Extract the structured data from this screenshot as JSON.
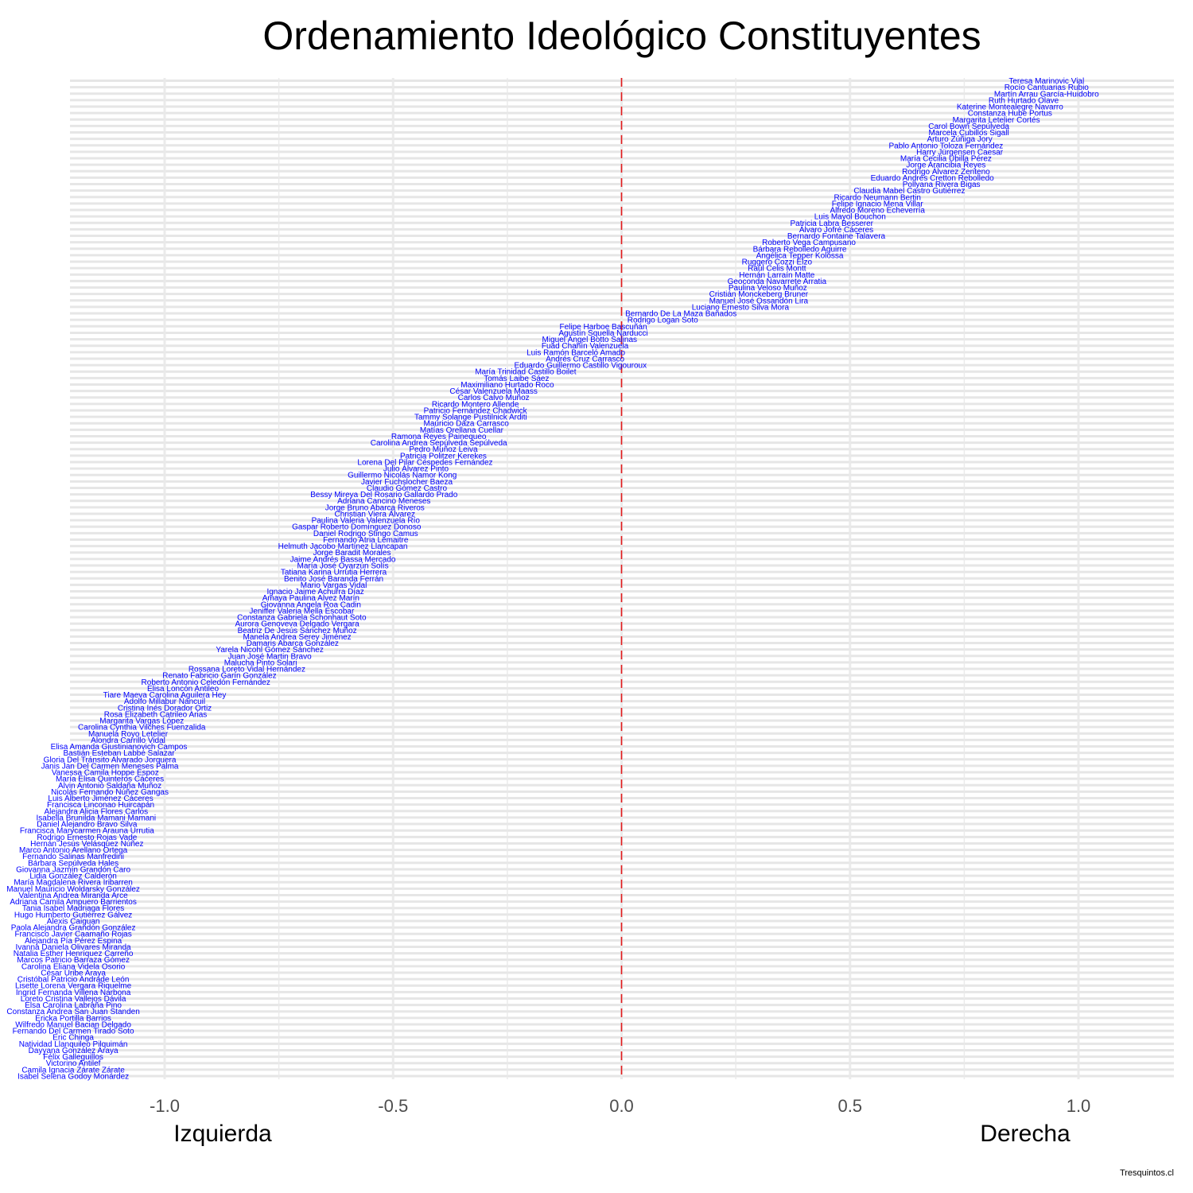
{
  "chart_data": {
    "type": "scatter",
    "title": "Ordenamiento Ideológico Constituyentes",
    "xlabel": "",
    "ylabel": "",
    "x_range": [
      -1.2,
      1.2
    ],
    "x_ticks": [
      "-1.0",
      "-0.5",
      "0.0",
      "0.5",
      "1.0"
    ],
    "x_tick_values": [
      -1.0,
      -0.5,
      0.0,
      0.5,
      1.0
    ],
    "left_label": "Izquierda",
    "right_label": "Derecha",
    "caption": "Tresquintos.cl",
    "reference_line": 0.0,
    "grid": "on",
    "colors": {
      "label": "#0000ff",
      "reference": "#e31a1c",
      "grid": "#e6e6e6",
      "title": "#000000",
      "tick": "#4d4d4d"
    },
    "points": [
      {
        "name": "Teresa Marinovic Vial",
        "x": 0.93
      },
      {
        "name": "Rocío Cantuarias Rubio",
        "x": 0.93
      },
      {
        "name": "Martín Arrau García-Huidobro",
        "x": 0.93
      },
      {
        "name": "Ruth Hurtado Olave",
        "x": 0.88
      },
      {
        "name": "Katerine Montealegre Navarro",
        "x": 0.85
      },
      {
        "name": "Constanza Hube Portus",
        "x": 0.85
      },
      {
        "name": "Margarita Letelier Cortés",
        "x": 0.82
      },
      {
        "name": "Carol Bown Sepúlveda",
        "x": 0.76
      },
      {
        "name": "Marcela Cubillos Sigall",
        "x": 0.76
      },
      {
        "name": "Arturo Zúñiga Jory",
        "x": 0.74
      },
      {
        "name": "Pablo Antonio Toloza Fernández",
        "x": 0.71
      },
      {
        "name": "Harry Jürgensen Caesar",
        "x": 0.74
      },
      {
        "name": "María Cecilia Ubilla Pérez",
        "x": 0.71
      },
      {
        "name": "Jorge Arancibia Reyes",
        "x": 0.71
      },
      {
        "name": "Rodrigo Álvarez Zenteno",
        "x": 0.71
      },
      {
        "name": "Eduardo Andrés Cretton Rebolledo",
        "x": 0.68
      },
      {
        "name": "Pollyana Rivera Bigas",
        "x": 0.7
      },
      {
        "name": "Claudia Mabel Castro Gutiérrez",
        "x": 0.63
      },
      {
        "name": "Ricardo Neumann Bertin",
        "x": 0.56
      },
      {
        "name": "Felipe Ignacio Mena Villar",
        "x": 0.56
      },
      {
        "name": "Alfredo Moreno Echeverría",
        "x": 0.56
      },
      {
        "name": "Luis Mayol Bouchon",
        "x": 0.5
      },
      {
        "name": "Patricia Labra Besserer",
        "x": 0.46
      },
      {
        "name": "Álvaro Jofré Cáceres",
        "x": 0.47
      },
      {
        "name": "Bernardo Fontaine Talavera",
        "x": 0.47
      },
      {
        "name": "Roberto Vega Campusano",
        "x": 0.41
      },
      {
        "name": "Bárbara Rebolledo Aguirre",
        "x": 0.39
      },
      {
        "name": "Angélica Tepper Kolossa",
        "x": 0.39
      },
      {
        "name": "Ruggero Cozzi Elzo",
        "x": 0.34
      },
      {
        "name": "Raúl Celis Montt",
        "x": 0.34
      },
      {
        "name": "Hernán Larraín Matte",
        "x": 0.34
      },
      {
        "name": "Geoconda Navarrete Arratia",
        "x": 0.34
      },
      {
        "name": "Paulina Veloso Muñoz",
        "x": 0.32
      },
      {
        "name": "Cristián Monckeberg Bruner",
        "x": 0.3
      },
      {
        "name": "Manuel José Ossandón Lira",
        "x": 0.3
      },
      {
        "name": "Luciano Ernesto Silva Mora",
        "x": 0.26
      },
      {
        "name": "Bernardo De La Maza Bañados",
        "x": 0.13
      },
      {
        "name": "Rodrigo Logan Soto",
        "x": 0.09
      },
      {
        "name": "Felipe Harboe Bascuñán",
        "x": -0.04
      },
      {
        "name": "Agustín Squella Narducci",
        "x": -0.04
      },
      {
        "name": "Miguel Ángel Botto Salinas",
        "x": -0.07
      },
      {
        "name": "Fuad Chahín Valenzuela",
        "x": -0.08
      },
      {
        "name": "Luis Ramón Barceló Amado",
        "x": -0.1
      },
      {
        "name": "Andrés Cruz Carrasco",
        "x": -0.08
      },
      {
        "name": "Eduardo Guillermo Castillo Vigouroux",
        "x": -0.09
      },
      {
        "name": "María Trinidad Castillo Boilet",
        "x": -0.21
      },
      {
        "name": "Tomás Laibe Sáez",
        "x": -0.23
      },
      {
        "name": "Maximiliano Hurtado Roco",
        "x": -0.25
      },
      {
        "name": "César Valenzuela Maass",
        "x": -0.28
      },
      {
        "name": "Carlos Calvo Muñoz",
        "x": -0.28
      },
      {
        "name": "Ricardo Montero Allende",
        "x": -0.32
      },
      {
        "name": "Patricio Fernández Chadwick",
        "x": -0.32
      },
      {
        "name": "Tammy Solange Pustilnick Arditi",
        "x": -0.33
      },
      {
        "name": "Mauricio Daza Carrasco",
        "x": -0.34
      },
      {
        "name": "Matías Orellana Cuellar",
        "x": -0.35
      },
      {
        "name": "Ramona Reyes Painequeo",
        "x": -0.4
      },
      {
        "name": "Carolina Andrea Sepúlveda Sepúlveda",
        "x": -0.4
      },
      {
        "name": "Pedro Muñoz Leiva",
        "x": -0.39
      },
      {
        "name": "Patricia Politzer Kerekes",
        "x": -0.39
      },
      {
        "name": "Lorena Del Pilar Céspedes Fernández",
        "x": -0.43
      },
      {
        "name": "Julio Álvarez Pinto",
        "x": -0.45
      },
      {
        "name": "Guillermo Nicolás Namor Kong",
        "x": -0.48
      },
      {
        "name": "Javier Fuchslocher Baeza",
        "x": -0.47
      },
      {
        "name": "Claudio Gómez Castro",
        "x": -0.47
      },
      {
        "name": "Bessy Mireya Del Rosario Gallardo Prado",
        "x": -0.52
      },
      {
        "name": "Adriana Cancino Meneses",
        "x": -0.52
      },
      {
        "name": "Jorge Bruno Abarca Riveros",
        "x": -0.54
      },
      {
        "name": "Christian Viera Álvarez",
        "x": -0.54
      },
      {
        "name": "Paulina Valeria Valenzuela Río",
        "x": -0.56
      },
      {
        "name": "Gaspar Roberto Domínguez Donoso",
        "x": -0.58
      },
      {
        "name": "Daniel Rodrigo Stingo Camus",
        "x": -0.56
      },
      {
        "name": "Fernando Atria Lemaitre",
        "x": -0.56
      },
      {
        "name": "Helmuth Jacobo Martínez Llancapan",
        "x": -0.61
      },
      {
        "name": "Jorge Baradit Morales",
        "x": -0.59
      },
      {
        "name": "Jaime Andrés Bassa Mercado",
        "x": -0.61
      },
      {
        "name": "María José Oyarzún Solís",
        "x": -0.61
      },
      {
        "name": "Tatiana Karina Urrutia Herrera",
        "x": -0.63
      },
      {
        "name": "Benito José Baranda Ferrán",
        "x": -0.63
      },
      {
        "name": "Mario Vargas Vidal",
        "x": -0.63
      },
      {
        "name": "Ignacio Jaime Achurra Díaz",
        "x": -0.67
      },
      {
        "name": "Amaya Paulina Alvez Marín",
        "x": -0.68
      },
      {
        "name": "Giovanna Angela Roa Cadin",
        "x": -0.68
      },
      {
        "name": "Jeniffer Valeria Mella Escobar",
        "x": -0.7
      },
      {
        "name": "Constanza Gabriela Schonhaut Soto",
        "x": -0.7
      },
      {
        "name": "Aurora Genoveva Delgado Vergara",
        "x": -0.71
      },
      {
        "name": "Beatriz De Jesús Sánchez Muñoz",
        "x": -0.71
      },
      {
        "name": "Manela Andrea Serey Jiménez",
        "x": -0.71
      },
      {
        "name": "Damaris Abarca González",
        "x": -0.72
      },
      {
        "name": "Yarela Nicohl Gómez Sánchez",
        "x": -0.77
      },
      {
        "name": "Juan José Martin Bravo",
        "x": -0.77
      },
      {
        "name": "Malucha Pinto Solari",
        "x": -0.79
      },
      {
        "name": "Rossana Loreto Vidal Hernández",
        "x": -0.82
      },
      {
        "name": "Renato Fabricio Garín González",
        "x": -0.88
      },
      {
        "name": "Roberto Antonio Celedón Fernández",
        "x": -0.91
      },
      {
        "name": "Elisa Loncón Antileo",
        "x": -0.96
      },
      {
        "name": "Tiare Maeva Carolina Aguilera Hey",
        "x": -1.0
      },
      {
        "name": "Adolfo Millabur Ñancuil",
        "x": -1.0
      },
      {
        "name": "Cristina Inés Dorador Ortiz",
        "x": -1.0
      },
      {
        "name": "Rosa Elizabeth Catrileo Arias",
        "x": -1.02
      },
      {
        "name": "Margarita Vargas López",
        "x": -1.05
      },
      {
        "name": "Carolina Cynthia Vilches Fuenzalida",
        "x": -1.05
      },
      {
        "name": "Manuela Royo Letelier",
        "x": -1.08
      },
      {
        "name": "Alondra Carrillo Vidal",
        "x": -1.08
      },
      {
        "name": "Elisa Amanda Giustinianovich Campos",
        "x": -1.1
      },
      {
        "name": "Bastián Esteban Labbé Salazar",
        "x": -1.1
      },
      {
        "name": "Gloria Del Tránsito Alvarado Jorquera",
        "x": -1.12
      },
      {
        "name": "Janis Jan Del Carmen Meneses Palma",
        "x": -1.12
      },
      {
        "name": "Vanessa Camila Hoppe Espoz",
        "x": -1.13
      },
      {
        "name": "María Elisa Quinteros Cáceres",
        "x": -1.12
      },
      {
        "name": "Alvin Antonio Saldaña Muñoz",
        "x": -1.12
      },
      {
        "name": "Nicolás Fernando Núñez Gangas",
        "x": -1.12
      },
      {
        "name": "Luis Alberto Jiménez Cáceres",
        "x": -1.14
      },
      {
        "name": "Francisca Linconao Huircapán",
        "x": -1.14
      },
      {
        "name": "Alejandra Alicia Flores Carlos",
        "x": -1.15
      },
      {
        "name": "Isabella Brunilda Mamani Mamani",
        "x": -1.15
      },
      {
        "name": "Daniel Alejandro Bravo Silva",
        "x": -1.17
      },
      {
        "name": "Francisca Marycarmen Arauna Urrutia",
        "x": -1.17
      },
      {
        "name": "Rodrigo Ernesto Rojas Vade",
        "x": -1.17
      },
      {
        "name": "Hernán Jesús Velásquez Núñez",
        "x": -1.17
      },
      {
        "name": "Marco Antonio Arellano Ortega",
        "x": -1.2
      },
      {
        "name": "Fernando Salinas Manfredini",
        "x": -1.2
      },
      {
        "name": "Bárbara Sepúlveda Hales",
        "x": -1.2
      },
      {
        "name": "Giovanna Jazmín Grandón Caro",
        "x": -1.2
      },
      {
        "name": "Lidia González Calderón",
        "x": -1.2
      },
      {
        "name": "María Magdalena Rivera Iribarren",
        "x": -1.2
      },
      {
        "name": "Manuel Mauricio Woldarsky González",
        "x": -1.2
      },
      {
        "name": "Valentina Andrea Miranda Arce",
        "x": -1.2
      },
      {
        "name": "Adriana Camila Ampuero Barrientos",
        "x": -1.2
      },
      {
        "name": "Tania Isabel Madriaga Flores",
        "x": -1.2
      },
      {
        "name": "Hugo Humberto Gutiérrez Gálvez",
        "x": -1.2
      },
      {
        "name": "Alexis Caiguan",
        "x": -1.2
      },
      {
        "name": "Paola Alejandra Grandón González",
        "x": -1.2
      },
      {
        "name": "Francisco Javier Caamaño Rojas",
        "x": -1.2
      },
      {
        "name": "Alejandra Pía Pérez Espina",
        "x": -1.2
      },
      {
        "name": "Ivanna Daniela Olivares Miranda",
        "x": -1.2
      },
      {
        "name": "Natalia Esther Henríquez Carreño",
        "x": -1.2
      },
      {
        "name": "Marcos Patricio Barraza Gómez",
        "x": -1.2
      },
      {
        "name": "Carolina Eliana Videla Osorio",
        "x": -1.2
      },
      {
        "name": "César Uribe Araya",
        "x": -1.2
      },
      {
        "name": "Cristóbal Patricio Andrade León",
        "x": -1.2
      },
      {
        "name": "Lisette Lorena Vergara Riquelme",
        "x": -1.2
      },
      {
        "name": "Ingrid Fernanda Villena Narbona",
        "x": -1.2
      },
      {
        "name": "Loreto Cristina Vallejos Dávila",
        "x": -1.2
      },
      {
        "name": "Elsa Carolina Labraña Pino",
        "x": -1.2
      },
      {
        "name": "Constanza Andrea San Juan Standen",
        "x": -1.2
      },
      {
        "name": "Ericka Portilla Barrios",
        "x": -1.2
      },
      {
        "name": "Wilfredo Manuel Bacian Delgado",
        "x": -1.2
      },
      {
        "name": "Fernando Del Carmen Tirado Soto",
        "x": -1.2
      },
      {
        "name": "Eric Chinga",
        "x": -1.2
      },
      {
        "name": "Natividad Llanquileo Pilquimán",
        "x": -1.2
      },
      {
        "name": "Dayyana González Araya",
        "x": -1.2
      },
      {
        "name": "Félix Galleguillos",
        "x": -1.2
      },
      {
        "name": "Victorino Antilef",
        "x": -1.2
      },
      {
        "name": "Camila Ignacia Zárate Zárate",
        "x": -1.2
      },
      {
        "name": "Isabel Selena Godoy Monárdez",
        "x": -1.2
      }
    ]
  }
}
